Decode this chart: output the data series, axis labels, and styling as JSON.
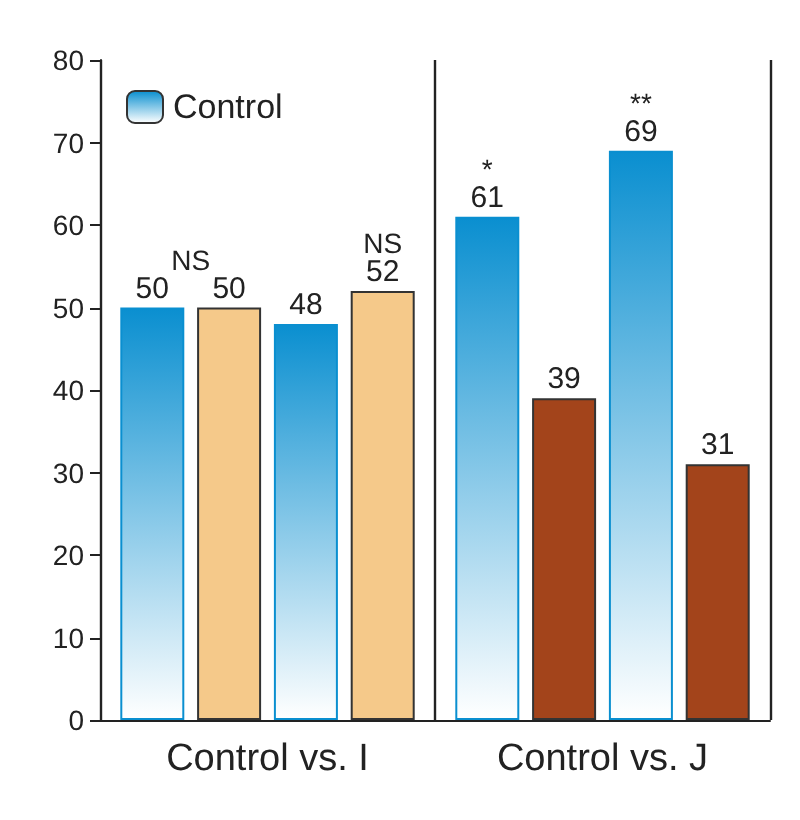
{
  "chart_data": {
    "type": "bar",
    "categories": [
      "Control vs. I",
      "Control vs. J"
    ],
    "series": [
      {
        "name": "Control",
        "color": "#0a8fd0",
        "values": [
          50,
          61
        ]
      },
      {
        "colors": [
          "#f5c98a",
          "#a3441b"
        ],
        "values": [
          50,
          39
        ]
      },
      {
        "color": "#0a8fd0",
        "values": [
          48,
          69
        ]
      },
      {
        "colors": [
          "#f5c98a",
          "#a3441b"
        ],
        "values": [
          52,
          31
        ]
      }
    ],
    "ylim": [
      0,
      80
    ],
    "yticks": [
      0,
      10,
      20,
      30,
      40,
      50,
      60,
      70,
      80
    ],
    "grid": "x",
    "legend": "top left",
    "data_labels": true,
    "annotations": [
      "NS",
      "NS",
      "*",
      "**"
    ]
  }
}
